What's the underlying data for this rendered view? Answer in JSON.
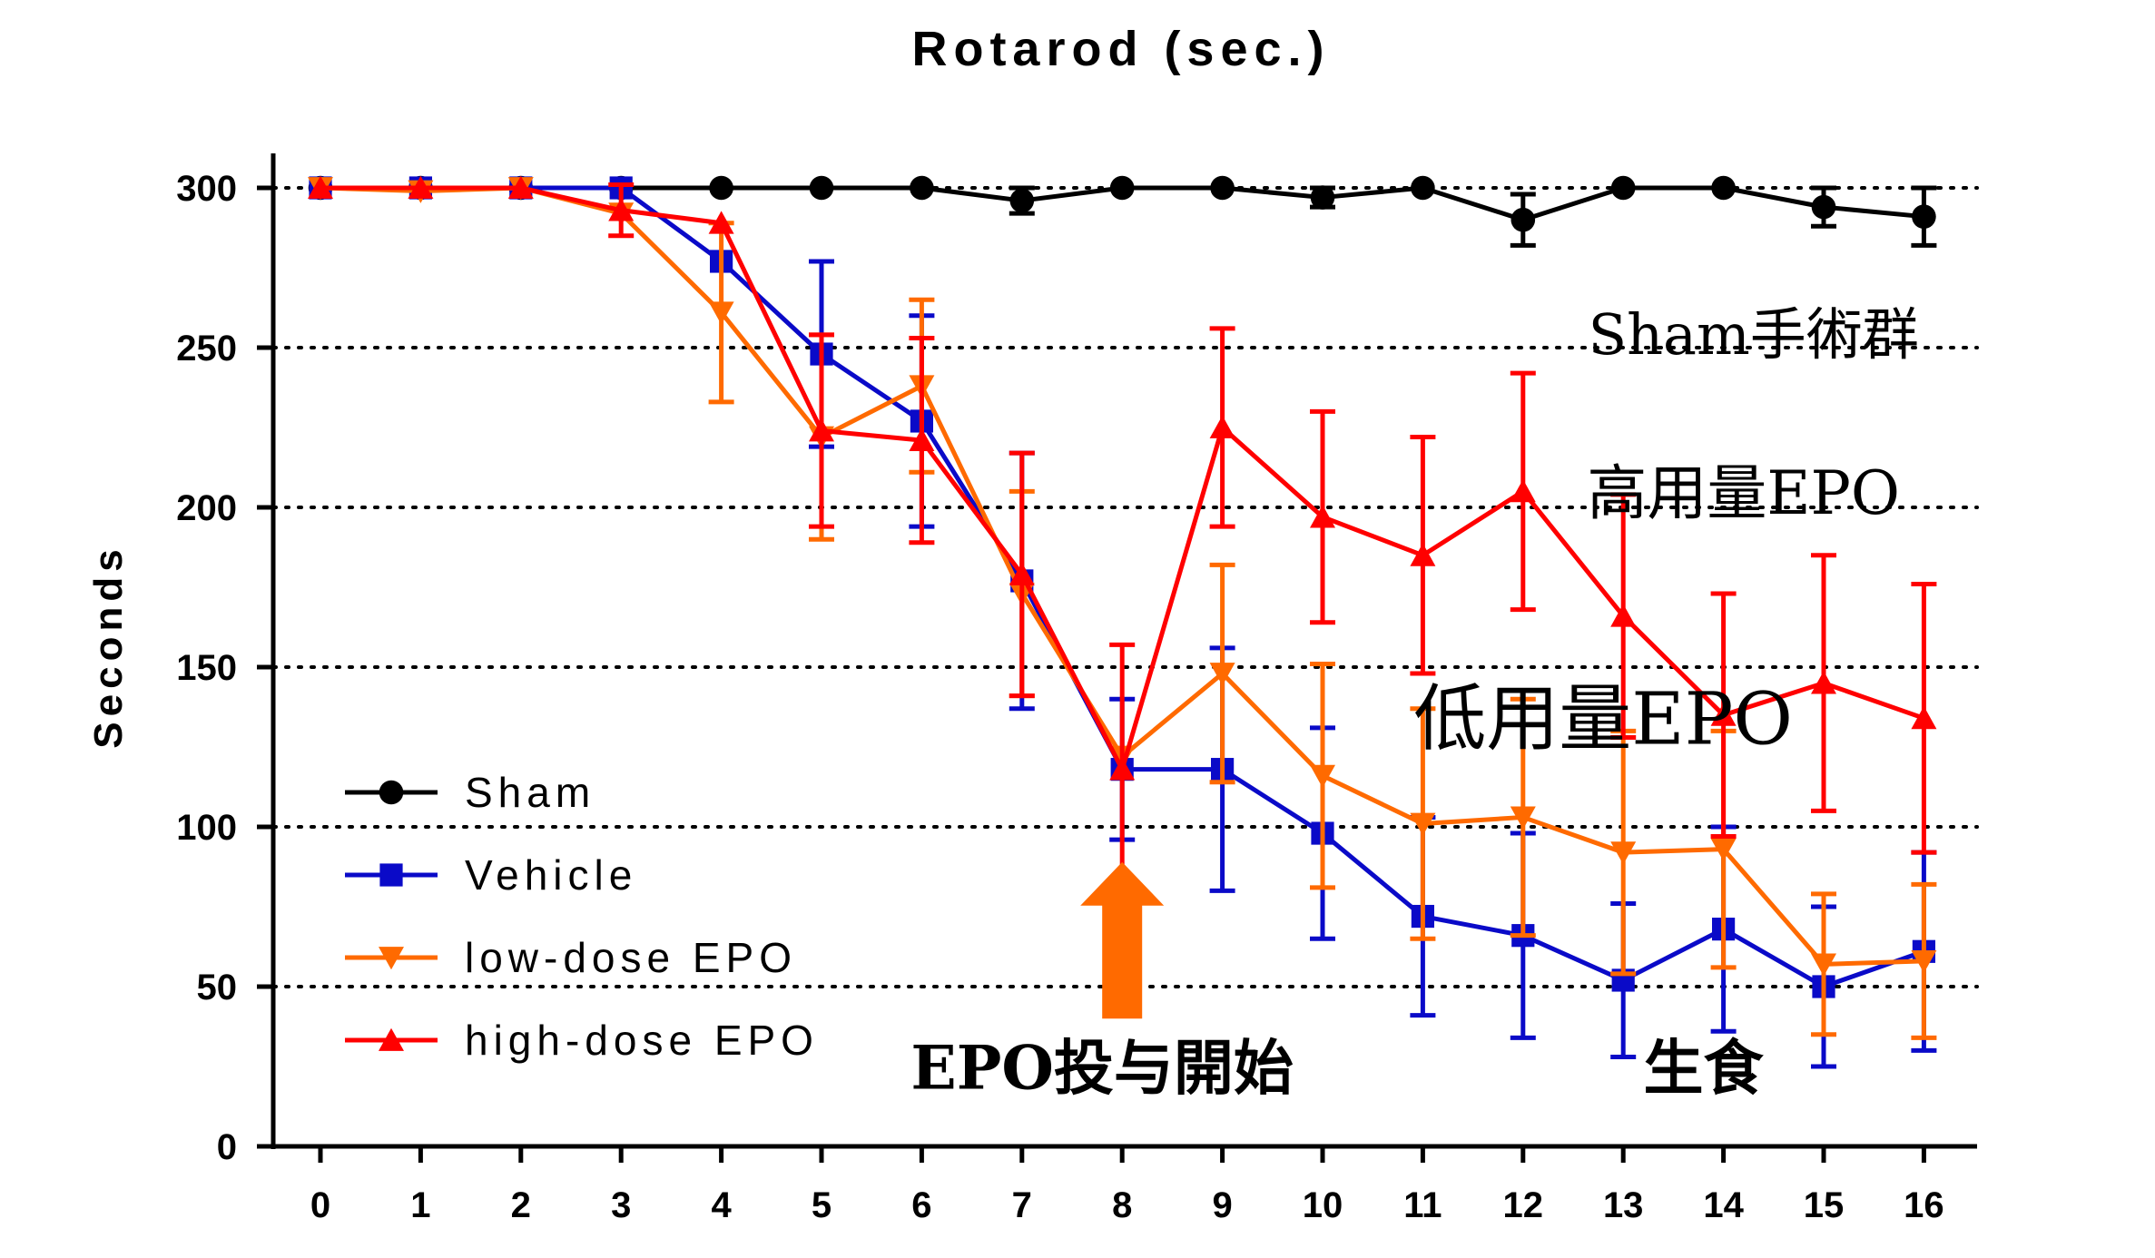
{
  "chart_data": {
    "type": "line",
    "title": "Rotarod (sec.)",
    "xlabel": "",
    "ylabel": "Seconds",
    "x": [
      0,
      1,
      2,
      3,
      4,
      5,
      6,
      7,
      8,
      9,
      10,
      11,
      12,
      13,
      14,
      15,
      16
    ],
    "xlim": [
      0,
      16
    ],
    "ylim": [
      0,
      300
    ],
    "yticks": [
      0,
      50,
      100,
      150,
      200,
      250,
      300
    ],
    "grid": "dotted horizontal at 50,100,150,200,250,300",
    "legend_position": "bottom-left",
    "series": [
      {
        "name": "Sham",
        "color": "#000000",
        "marker": "circle",
        "values": [
          300,
          300,
          300,
          300,
          300,
          300,
          300,
          296,
          300,
          300,
          297,
          300,
          290,
          300,
          300,
          294,
          291
        ],
        "error": [
          0,
          0,
          0,
          0,
          0,
          0,
          0,
          4,
          0,
          0,
          3,
          0,
          8,
          0,
          0,
          6,
          9
        ]
      },
      {
        "name": "Vehicle",
        "color": "#0a0ac8",
        "marker": "square",
        "values": [
          300,
          300,
          300,
          300,
          277,
          248,
          227,
          177,
          118,
          118,
          98,
          72,
          66,
          52,
          68,
          50,
          61
        ],
        "error": [
          0,
          0,
          0,
          0,
          0,
          29,
          33,
          40,
          22,
          38,
          33,
          31,
          32,
          24,
          32,
          25,
          31
        ]
      },
      {
        "name": "low-dose EPO",
        "color": "#ff6a00",
        "marker": "triangle-down",
        "values": [
          300,
          299,
          300,
          292,
          261,
          222,
          238,
          173,
          122,
          148,
          116,
          101,
          103,
          92,
          93,
          57,
          58
        ],
        "error": [
          0,
          0,
          0,
          0,
          28,
          32,
          27,
          32,
          0,
          34,
          35,
          36,
          37,
          38,
          37,
          22,
          24
        ]
      },
      {
        "name": "high-dose EPO",
        "color": "#ff0000",
        "marker": "triangle-up",
        "values": [
          300,
          300,
          300,
          293,
          289,
          224,
          221,
          179,
          118,
          225,
          197,
          185,
          205,
          166,
          135,
          145,
          134
        ],
        "error": [
          0,
          0,
          0,
          8,
          0,
          30,
          32,
          38,
          39,
          31,
          33,
          37,
          37,
          38,
          38,
          40,
          42
        ]
      }
    ],
    "annotations": [
      {
        "text": "Sham手術群",
        "x": 14.3,
        "y": 248
      },
      {
        "text": "高用量EPO",
        "x": 14.2,
        "y": 198
      },
      {
        "text": "低用量EPO",
        "x": 12.8,
        "y": 126
      },
      {
        "text": "EPO投与開始",
        "x": 7.8,
        "y": 18
      },
      {
        "text": "生食",
        "x": 13.8,
        "y": 18
      }
    ],
    "arrow": {
      "x": 8,
      "y_from": 40,
      "y_to": 89,
      "color": "#ff6a00"
    }
  }
}
